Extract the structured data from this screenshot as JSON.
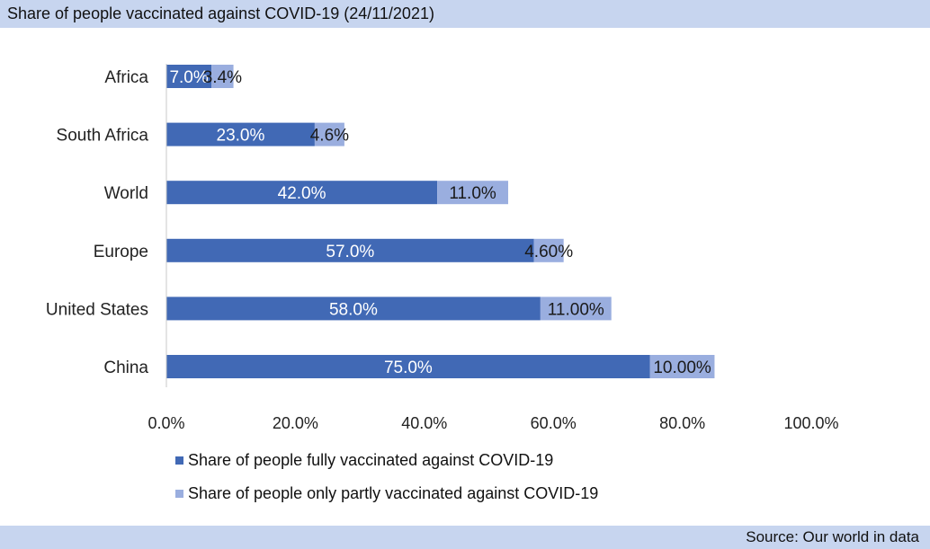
{
  "title": "Share of people vaccinated against COVID-19 (24/11/2021)",
  "source": "Source: Our world in data",
  "colors": {
    "fully": "#4169b5",
    "partly": "#9aaedf",
    "band": "#c7d5ef",
    "axis": "#c8c8c8",
    "text": "#222222"
  },
  "chart_data": {
    "type": "bar",
    "orientation": "horizontal",
    "stacked": true,
    "categories": [
      "Africa",
      "South Africa",
      "World",
      "Europe",
      "United States",
      "China"
    ],
    "series": [
      {
        "name": "Share of people fully vaccinated against COVID-19",
        "values": [
          7.0,
          23.0,
          42.0,
          57.0,
          58.0,
          75.0
        ],
        "labels": [
          "7.0%",
          "23.0%",
          "42.0%",
          "57.0%",
          "58.0%",
          "75.0%"
        ]
      },
      {
        "name": "Share of people only partly vaccinated against COVID-19",
        "values": [
          3.4,
          4.6,
          11.0,
          4.6,
          11.0,
          10.0
        ],
        "labels": [
          "3.4%",
          "4.6%",
          "11.0%",
          "4.60%",
          "11.00%",
          "10.00%"
        ]
      }
    ],
    "xlim": [
      0,
      100
    ],
    "xticks": [
      0,
      20,
      40,
      60,
      80,
      100
    ],
    "xtick_labels": [
      "0.0%",
      "20.0%",
      "40.0%",
      "60.0%",
      "80.0%",
      "100.0%"
    ],
    "grid": false,
    "legend_position": "bottom"
  }
}
